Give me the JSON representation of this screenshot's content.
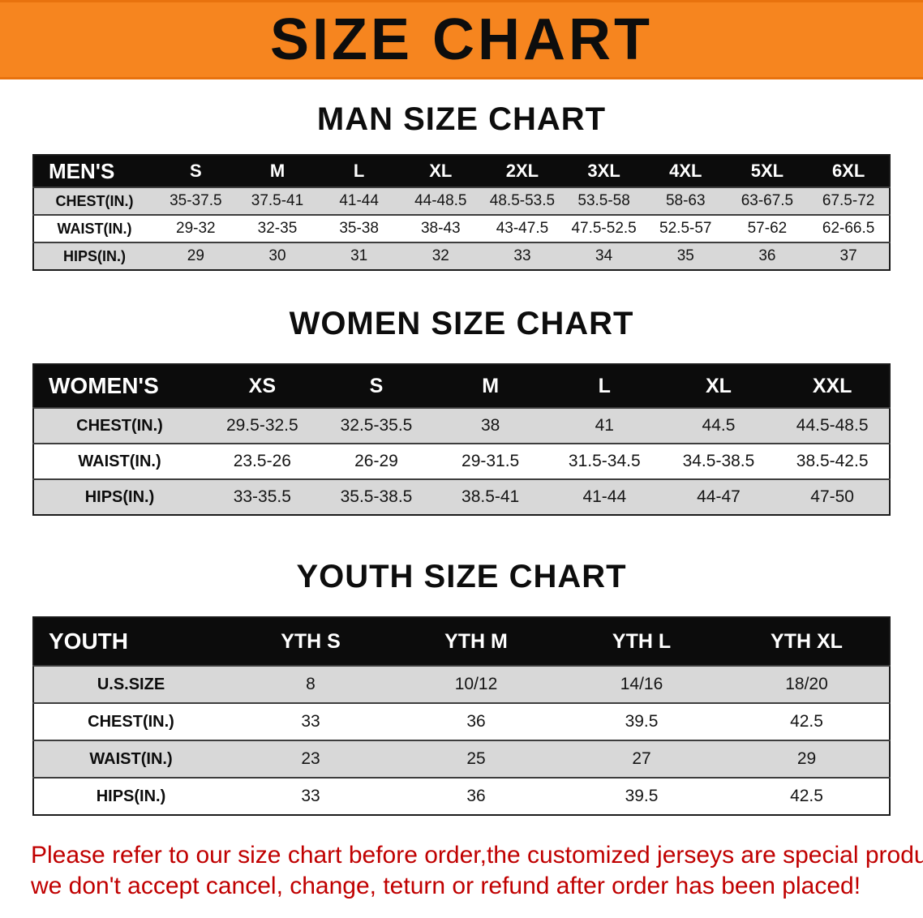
{
  "banner": {
    "title": "SIZE CHART",
    "bg_color": "#f6851f",
    "text_color": "#0d0d0d"
  },
  "men": {
    "heading": "MAN SIZE CHART",
    "corner": "MEN'S",
    "columns": [
      "S",
      "M",
      "L",
      "XL",
      "2XL",
      "3XL",
      "4XL",
      "5XL",
      "6XL"
    ],
    "rows": [
      {
        "label": "CHEST(IN.)",
        "values": [
          "35-37.5",
          "37.5-41",
          "41-44",
          "44-48.5",
          "48.5-53.5",
          "53.5-58",
          "58-63",
          "63-67.5",
          "67.5-72"
        ]
      },
      {
        "label": "WAIST(IN.)",
        "values": [
          "29-32",
          "32-35",
          "35-38",
          "38-43",
          "43-47.5",
          "47.5-52.5",
          "52.5-57",
          "57-62",
          "62-66.5"
        ]
      },
      {
        "label": "HIPS(IN.)",
        "values": [
          "29",
          "30",
          "31",
          "32",
          "33",
          "34",
          "35",
          "36",
          "37"
        ]
      }
    ]
  },
  "women": {
    "heading": "WOMEN SIZE CHART",
    "corner": "WOMEN'S",
    "columns": [
      "XS",
      "S",
      "M",
      "L",
      "XL",
      "XXL"
    ],
    "rows": [
      {
        "label": "CHEST(IN.)",
        "values": [
          "29.5-32.5",
          "32.5-35.5",
          "38",
          "41",
          "44.5",
          "44.5-48.5"
        ]
      },
      {
        "label": "WAIST(IN.)",
        "values": [
          "23.5-26",
          "26-29",
          "29-31.5",
          "31.5-34.5",
          "34.5-38.5",
          "38.5-42.5"
        ]
      },
      {
        "label": "HIPS(IN.)",
        "values": [
          "33-35.5",
          "35.5-38.5",
          "38.5-41",
          "41-44",
          "44-47",
          "47-50"
        ]
      }
    ]
  },
  "youth": {
    "heading": "YOUTH SIZE CHART",
    "corner": "YOUTH",
    "columns": [
      "YTH S",
      "YTH M",
      "YTH L",
      "YTH XL"
    ],
    "rows": [
      {
        "label": "U.S.SIZE",
        "values": [
          "8",
          "10/12",
          "14/16",
          "18/20"
        ]
      },
      {
        "label": "CHEST(IN.)",
        "values": [
          "33",
          "36",
          "39.5",
          "42.5"
        ]
      },
      {
        "label": "WAIST(IN.)",
        "values": [
          "23",
          "25",
          "27",
          "29"
        ]
      },
      {
        "label": "HIPS(IN.)",
        "values": [
          "33",
          "36",
          "39.5",
          "42.5"
        ]
      }
    ]
  },
  "footer": {
    "line1": "Please refer to our size chart before order,the customized jerseys are special products,",
    "line2": "we don't accept cancel, change, teturn or refund after order has been placed!",
    "text_color": "#c00000"
  }
}
